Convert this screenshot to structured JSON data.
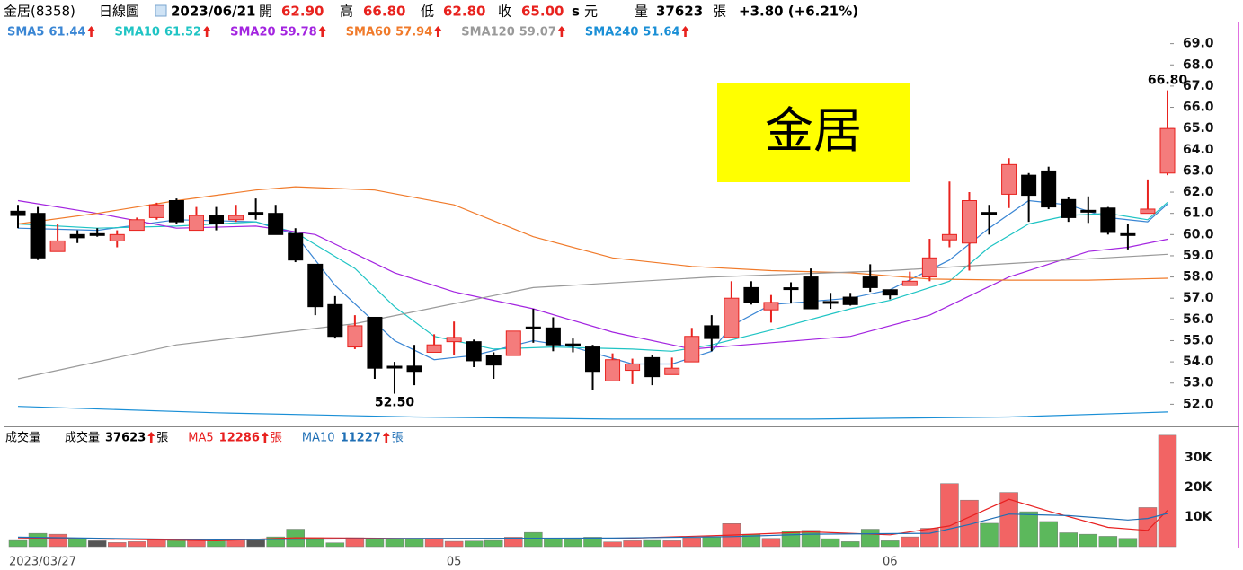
{
  "header": {
    "stock": "金居(8358)",
    "period": "日線圖",
    "date": "2023/06/21",
    "quotes": [
      {
        "label": "開",
        "value": "62.90"
      },
      {
        "label": "高",
        "value": "66.80"
      },
      {
        "label": "低",
        "value": "62.80"
      },
      {
        "label": "收",
        "value": "65.00"
      }
    ],
    "flag": "s",
    "currency": "元",
    "volume_label": "量",
    "volume": "37623",
    "volume_unit": "張",
    "change": "+3.80 (+6.21%)"
  },
  "chart_data": [
    {
      "type": "candlestick",
      "watermark": "金居",
      "open": [
        61.1,
        61.0,
        59.2,
        60.0,
        60.0,
        59.7,
        60.2,
        60.8,
        61.6,
        60.2,
        60.9,
        60.7,
        61.0,
        61.0,
        60.05,
        58.6,
        56.7,
        54.7,
        56.1,
        53.75,
        53.8,
        54.45,
        54.95,
        54.95,
        54.3,
        54.3,
        55.6,
        55.6,
        54.8,
        54.7,
        53.1,
        53.6,
        54.2,
        53.4,
        54.0,
        55.7,
        55.15,
        57.5,
        56.45,
        57.45,
        58.0,
        56.8,
        57.05,
        58.0,
        57.4,
        57.6,
        58.0,
        59.75,
        59.6,
        61.0,
        61.9,
        62.8,
        63.0,
        61.65,
        61.1,
        61.25,
        60.0,
        61.0,
        62.9
      ],
      "high": [
        61.4,
        61.3,
        60.5,
        60.2,
        60.3,
        60.2,
        60.8,
        61.5,
        61.7,
        61.3,
        61.3,
        61.4,
        61.7,
        61.4,
        60.3,
        58.6,
        57.1,
        56.2,
        56.1,
        54.0,
        54.8,
        55.3,
        55.9,
        55.05,
        54.45,
        55.45,
        56.5,
        56.1,
        55.1,
        54.8,
        54.4,
        54.15,
        54.3,
        54.2,
        55.6,
        56.2,
        57.8,
        57.8,
        57.15,
        57.75,
        58.4,
        57.25,
        57.25,
        58.6,
        57.4,
        58.25,
        59.8,
        62.5,
        62.0,
        61.4,
        63.6,
        62.9,
        63.2,
        61.75,
        61.8,
        61.3,
        60.5,
        62.6,
        66.8
      ],
      "low": [
        60.3,
        58.8,
        59.2,
        59.6,
        59.9,
        59.4,
        60.2,
        60.7,
        60.5,
        60.2,
        60.2,
        60.6,
        60.7,
        60.0,
        58.7,
        56.2,
        55.1,
        54.6,
        53.2,
        52.5,
        52.9,
        54.45,
        54.3,
        53.75,
        53.2,
        54.3,
        54.9,
        54.5,
        54.45,
        52.65,
        53.1,
        52.95,
        52.9,
        53.4,
        54.0,
        54.5,
        55.15,
        56.7,
        55.85,
        56.75,
        56.5,
        56.5,
        56.65,
        57.3,
        56.95,
        57.6,
        57.8,
        59.4,
        58.3,
        60.0,
        61.25,
        60.6,
        61.2,
        60.6,
        60.55,
        60.0,
        59.3,
        61.0,
        62.8
      ],
      "close": [
        60.9,
        58.9,
        59.7,
        59.85,
        60.0,
        60.0,
        60.7,
        61.4,
        60.6,
        60.9,
        60.5,
        60.9,
        61.0,
        60.0,
        58.8,
        56.6,
        55.2,
        55.7,
        53.7,
        53.7,
        53.55,
        54.8,
        55.15,
        54.05,
        53.85,
        55.45,
        55.55,
        54.8,
        54.75,
        53.55,
        54.1,
        53.9,
        53.3,
        53.7,
        55.2,
        55.1,
        57.0,
        56.8,
        56.8,
        57.4,
        56.5,
        56.75,
        56.7,
        57.5,
        57.15,
        57.8,
        58.9,
        60.0,
        61.6,
        60.95,
        63.3,
        61.85,
        61.3,
        60.8,
        61.05,
        60.1,
        59.95,
        61.2,
        65.0
      ],
      "up_color": "#e8221e",
      "up_fill": "#f47c7c",
      "down_color": "#000000",
      "ylim": [
        51,
        70
      ],
      "yticks": [
        {
          "value": 69,
          "label": "69.0"
        },
        {
          "value": 68,
          "label": "68.0"
        },
        {
          "value": 67,
          "label": "67.0"
        },
        {
          "value": 66,
          "label": "66.0"
        },
        {
          "value": 65,
          "label": "65.0"
        },
        {
          "value": 64,
          "label": "64.0"
        },
        {
          "value": 63,
          "label": "63.0"
        },
        {
          "value": 62,
          "label": "62.0"
        },
        {
          "value": 61,
          "label": "61.0"
        },
        {
          "value": 60,
          "label": "60.0"
        },
        {
          "value": 59,
          "label": "59.0"
        },
        {
          "value": 58,
          "label": "58.0"
        },
        {
          "value": 57,
          "label": "57.0"
        },
        {
          "value": 56,
          "label": "56.0"
        },
        {
          "value": 55,
          "label": "55.0"
        },
        {
          "value": 54,
          "label": "54.0"
        },
        {
          "value": 53,
          "label": "53.0"
        },
        {
          "value": 52,
          "label": "52.0"
        }
      ],
      "annotations": [
        {
          "text": "52.50"
        },
        {
          "text": "66.80"
        }
      ],
      "series": [
        {
          "name": "SMA5",
          "color": "#3a86d4",
          "legend_value": 61.44,
          "x": [
            0,
            4,
            8,
            12,
            14,
            16,
            19,
            21,
            23,
            26,
            28,
            31,
            33,
            35,
            36,
            38,
            42,
            44,
            47,
            49,
            51,
            53,
            55,
            57,
            58
          ],
          "values": [
            60.3,
            60.2,
            60.7,
            60.6,
            60.0,
            57.6,
            55.0,
            54.1,
            54.3,
            55.0,
            54.7,
            53.9,
            53.9,
            54.5,
            55.7,
            56.7,
            57.0,
            57.4,
            58.8,
            60.3,
            61.6,
            61.4,
            60.8,
            60.6,
            61.44
          ]
        },
        {
          "name": "SMA10",
          "color": "#1fc4c4",
          "legend_value": 61.52,
          "x": [
            0,
            4,
            8,
            12,
            14,
            17,
            19,
            21,
            24,
            27,
            31,
            33,
            35,
            38,
            42,
            44,
            47,
            49,
            51,
            53,
            55,
            57,
            58
          ],
          "values": [
            60.5,
            60.3,
            60.4,
            60.6,
            60.1,
            58.4,
            56.6,
            55.2,
            54.6,
            54.7,
            54.6,
            54.5,
            54.8,
            55.5,
            56.5,
            56.9,
            57.8,
            59.4,
            60.5,
            60.9,
            61.0,
            60.7,
            61.52
          ]
        },
        {
          "name": "SMA20",
          "color": "#a324e0",
          "legend_value": 59.78,
          "x": [
            0,
            4,
            8,
            12,
            15,
            17,
            19,
            22,
            26,
            30,
            34,
            38,
            42,
            46,
            50,
            54,
            56,
            58
          ],
          "values": [
            61.6,
            61.0,
            60.3,
            60.4,
            60.0,
            59.1,
            58.2,
            57.3,
            56.5,
            55.4,
            54.6,
            54.9,
            55.2,
            56.2,
            58.0,
            59.2,
            59.4,
            59.78
          ]
        },
        {
          "name": "SMA60",
          "color": "#f07a2a",
          "legend_value": 57.94,
          "x": [
            0,
            4,
            8,
            12,
            14,
            18,
            22,
            26,
            30,
            34,
            38,
            42,
            46,
            50,
            54,
            58
          ],
          "values": [
            60.5,
            61.0,
            61.6,
            62.1,
            62.25,
            62.1,
            61.4,
            59.9,
            58.9,
            58.5,
            58.3,
            58.2,
            57.9,
            57.85,
            57.85,
            57.94
          ]
        },
        {
          "name": "SMA120",
          "color": "#999999",
          "legend_value": 59.07,
          "x": [
            0,
            8,
            17,
            26,
            35,
            44,
            53,
            58
          ],
          "values": [
            53.2,
            54.8,
            55.8,
            57.5,
            58.0,
            58.3,
            58.8,
            59.07
          ]
        },
        {
          "name": "SMA240",
          "color": "#1a8fd6",
          "legend_value": 51.64,
          "x": [
            0,
            10,
            20,
            30,
            40,
            50,
            58
          ],
          "values": [
            51.9,
            51.6,
            51.4,
            51.3,
            51.3,
            51.4,
            51.64
          ]
        }
      ]
    },
    {
      "type": "bar",
      "title": "成交量",
      "name": "成交量",
      "legend_value": 37623,
      "unit": "張",
      "categories": [
        "2023/03/27",
        null,
        null,
        null,
        null,
        null,
        null,
        null,
        null,
        null,
        null,
        null,
        null,
        null,
        null,
        null,
        null,
        null,
        null,
        null,
        null,
        null,
        "05",
        null,
        null,
        null,
        null,
        null,
        null,
        null,
        null,
        null,
        null,
        null,
        null,
        null,
        null,
        null,
        null,
        null,
        null,
        null,
        null,
        null,
        "06",
        null,
        null,
        null,
        null,
        null,
        null,
        null,
        null,
        null,
        null,
        null,
        null,
        null,
        null
      ],
      "values": [
        2100,
        4500,
        4200,
        2500,
        2000,
        1400,
        1700,
        2200,
        2400,
        2100,
        2100,
        2200,
        2200,
        3300,
        5900,
        3000,
        1300,
        3000,
        2900,
        2700,
        2500,
        2500,
        1800,
        1900,
        2100,
        3200,
        4800,
        2600,
        2400,
        3200,
        1600,
        2000,
        2100,
        2000,
        3000,
        3300,
        7800,
        4200,
        2800,
        5200,
        5500,
        2700,
        1700,
        5900,
        2000,
        3300,
        6200,
        21300,
        15700,
        7900,
        18300,
        11800,
        8500,
        4700,
        4200,
        3500,
        2800,
        13200,
        37623
      ],
      "up_color": "#f26464",
      "down_color": "#5cb85c",
      "flat_color": "#555555",
      "ylim": [
        0,
        40000
      ],
      "yticks": [
        {
          "value": 30000,
          "label": "30K"
        },
        {
          "value": 20000,
          "label": "20K"
        },
        {
          "value": 10000,
          "label": "10K"
        }
      ],
      "series": [
        {
          "name": "MA5",
          "color": "#e82020",
          "legend_value": 12286,
          "x": [
            0,
            10,
            14,
            20,
            26,
            30,
            36,
            40,
            44,
            47,
            49,
            50,
            52,
            55,
            57,
            58
          ],
          "values": [
            3000,
            2000,
            3000,
            2800,
            2800,
            2700,
            3900,
            5000,
            4000,
            7000,
            13000,
            16000,
            12000,
            6500,
            5500,
            12286
          ]
        },
        {
          "name": "MA10",
          "color": "#1f6fb5",
          "legend_value": 11227,
          "x": [
            0,
            10,
            20,
            30,
            36,
            40,
            46,
            48,
            50,
            53,
            56,
            57,
            58
          ],
          "values": [
            3200,
            2300,
            2800,
            2900,
            3400,
            4200,
            4500,
            7500,
            11000,
            10500,
            9000,
            9500,
            11227
          ]
        }
      ]
    }
  ]
}
